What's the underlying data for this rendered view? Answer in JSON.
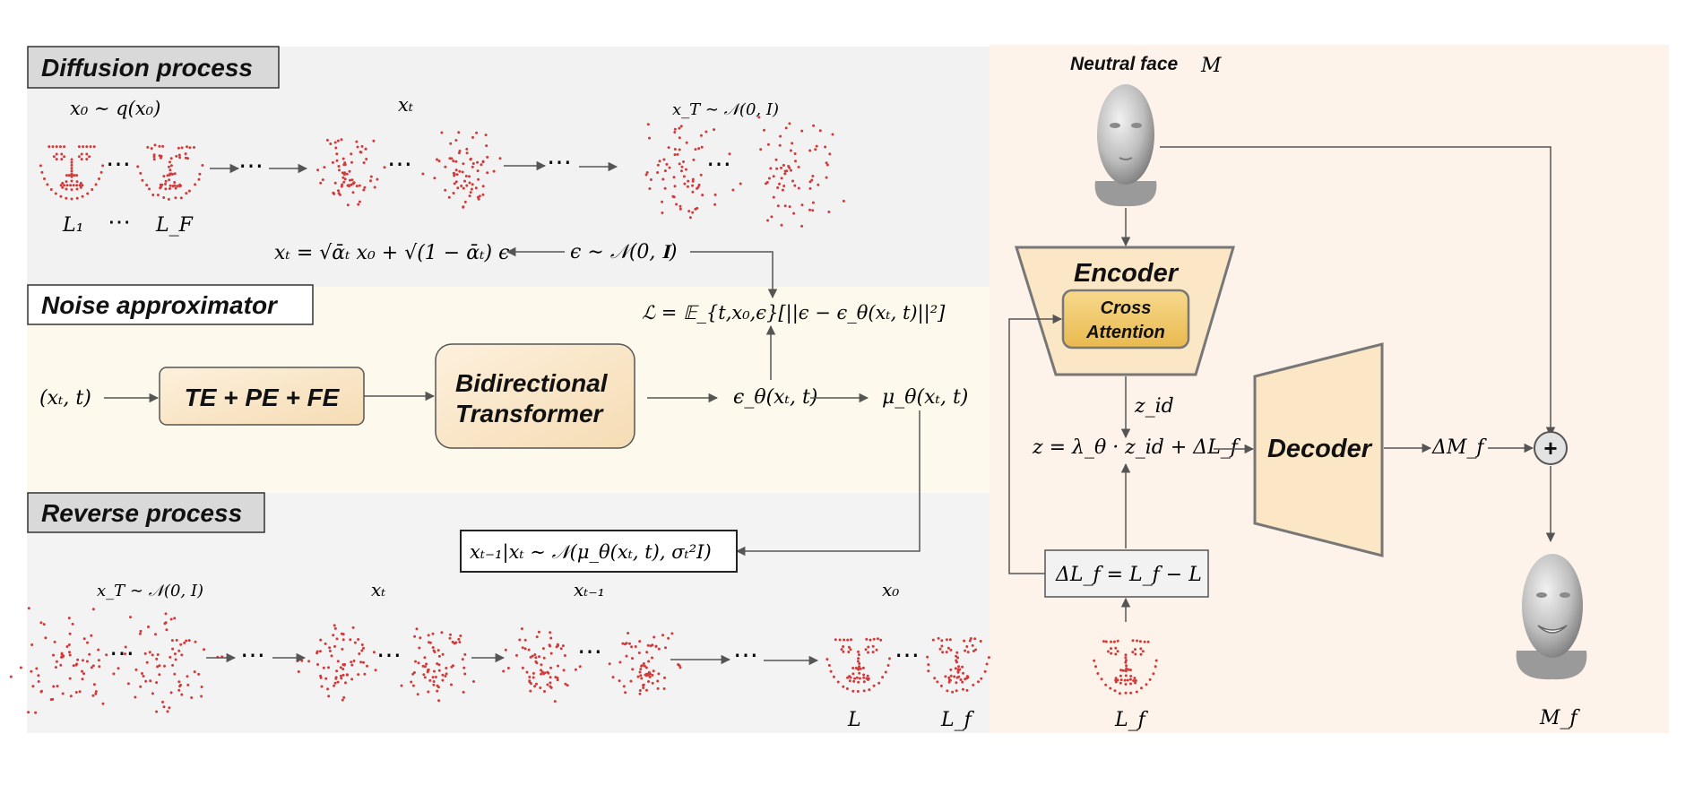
{
  "sections": {
    "diffusion_title": "Diffusion process",
    "noise_title": "Noise approximator",
    "reverse_title": "Reverse process"
  },
  "diffusion": {
    "label_x0": "x₀ ∼ q(x₀)",
    "label_xt": "xₜ",
    "label_xT": "x_T ∼ 𝒩(0, I)",
    "label_L1": "L₁",
    "label_dots": "⋯",
    "label_LF": "L_F",
    "forward_eq": "xₜ = √ᾱₜ x₀ + √(1 − ᾱₜ) ϵ",
    "eps_eq": "ϵ ∼ 𝒩(0, 𝐈)"
  },
  "noise": {
    "input": "(xₜ, t)",
    "embed_box": "TE + PE + FE",
    "transformer_line1": "Bidirectional",
    "transformer_line2": "Transformer",
    "eps_theta": "ϵ_θ(xₜ, t)",
    "mu_theta": "μ_θ(xₜ, t)",
    "loss": "ℒ = 𝔼_{t,x₀,ϵ}[||ϵ − ϵ_θ(xₜ, t)||²]"
  },
  "reverse": {
    "posterior": "xₜ₋₁|xₜ ∼ 𝒩(μ_θ(xₜ, t), σₜ²I)",
    "label_xT": "x_T ∼ 𝒩(0, I)",
    "label_xt": "xₜ",
    "label_xt1": "xₜ₋₁",
    "label_x0": "x₀",
    "label_L": "L",
    "label_Lf": "L_f"
  },
  "decoder_side": {
    "neutral_face": "Neutral face",
    "neutral_symbol": "M",
    "encoder": "Encoder",
    "cross_line1": "Cross",
    "cross_line2": "Attention",
    "z_id": "z_id",
    "z_eq": "z = λ_θ · z_id + ΔL_f",
    "decoder": "Decoder",
    "delta_mf": "ΔM_f",
    "plus": "+",
    "delta_lf_eq": "ΔL_f = L_f − L",
    "lf_label": "L_f",
    "mf_label": "M_f"
  },
  "colors": {
    "gray_panel": "#f2f2f2",
    "yellow_panel": "#fdf9ec",
    "peach_panel": "#fdf3ea",
    "box_fill": "#fbe9cc",
    "cross_fill": "#f0c766",
    "landmark": "#d23a3a",
    "arrow": "#555555"
  }
}
